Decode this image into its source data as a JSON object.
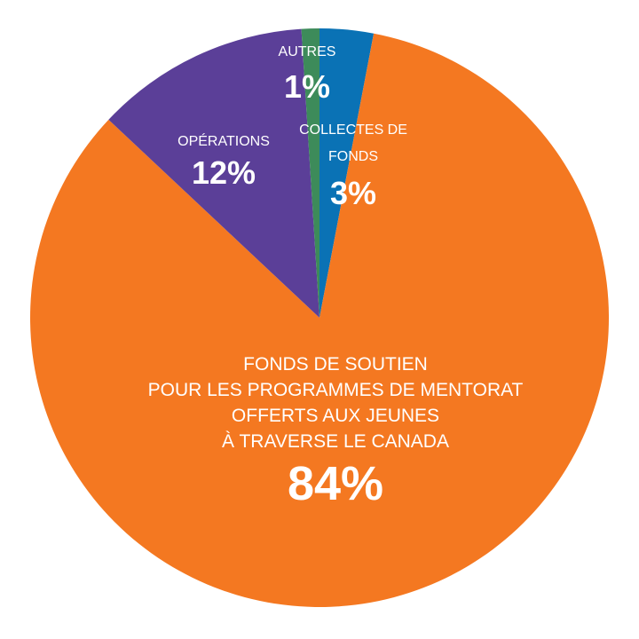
{
  "chart_data": {
    "type": "pie",
    "start": "12 o'clock",
    "direction": "clockwise",
    "slices": [
      {
        "label_lines": [
          "COLLECTES DE",
          "FONDS"
        ],
        "value": 3,
        "value_label": "3%",
        "color": "#0A72B5"
      },
      {
        "label_lines": [
          "FONDS DE SOUTIEN",
          "POUR LES PROGRAMMES DE MENTORAT",
          "OFFERTS AUX JEUNES",
          "À TRAVERSE LE CANADA"
        ],
        "value": 84,
        "value_label": "84%",
        "color": "#F47821"
      },
      {
        "label_lines": [
          "OPÉRATIONS"
        ],
        "value": 12,
        "value_label": "12%",
        "color": "#5B3F98"
      },
      {
        "label_lines": [
          "AUTRES"
        ],
        "value": 1,
        "value_label": "1%",
        "color": "#3D8B5A"
      }
    ]
  }
}
